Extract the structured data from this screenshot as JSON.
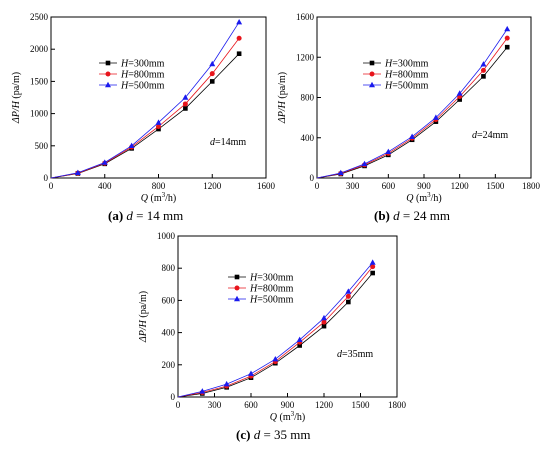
{
  "colors": {
    "H300": "#000000",
    "H800": "#e8141b",
    "H500": "#1a1aee"
  },
  "chart_data": [
    {
      "type": "line",
      "panel": "a",
      "caption": {
        "label": "(a)",
        "var": "d",
        "text": " = 14 mm"
      },
      "annotation": {
        "var": "d",
        "text": "=14mm"
      },
      "xlabel": {
        "var": "Q",
        "text": " (m",
        "sup": "3",
        "tail": "/h)"
      },
      "ylabel": {
        "var": "ΔP/H",
        "text": " (pa/m)"
      },
      "xlim": [
        0,
        1600
      ],
      "ylim": [
        0,
        2500
      ],
      "xticks": [
        0,
        400,
        800,
        1200,
        1600
      ],
      "yticks": [
        0,
        500,
        1000,
        1500,
        2000,
        2500
      ],
      "legend_position": "upper-left",
      "x": [
        0,
        200,
        400,
        600,
        800,
        1000,
        1200,
        1400
      ],
      "series": [
        {
          "name": "H=300mm",
          "var": "H",
          "label": "=300mm",
          "marker": "square",
          "color_key": "H300",
          "values": [
            0,
            70,
            220,
            460,
            760,
            1080,
            1500,
            1930
          ]
        },
        {
          "name": "H=800mm",
          "var": "H",
          "label": "=800mm",
          "marker": "circle",
          "color_key": "H800",
          "values": [
            0,
            75,
            230,
            480,
            800,
            1150,
            1620,
            2170
          ]
        },
        {
          "name": "H=500mm",
          "var": "H",
          "label": "=500mm",
          "marker": "triangle",
          "color_key": "H500",
          "values": [
            0,
            80,
            240,
            500,
            860,
            1250,
            1770,
            2420
          ]
        }
      ]
    },
    {
      "type": "line",
      "panel": "b",
      "caption": {
        "label": "(b)",
        "var": "d",
        "text": " = 24 mm"
      },
      "annotation": {
        "var": "d",
        "text": "=24mm"
      },
      "xlabel": {
        "var": "Q",
        "text": " (m",
        "sup": "3",
        "tail": "/h)"
      },
      "ylabel": {
        "var": "ΔP/H",
        "text": " (pa/m)"
      },
      "xlim": [
        0,
        1800
      ],
      "ylim": [
        0,
        1600
      ],
      "xticks": [
        0,
        300,
        600,
        900,
        1200,
        1500,
        1800
      ],
      "yticks": [
        0,
        400,
        800,
        1200,
        1600
      ],
      "legend_position": "upper-left",
      "x": [
        0,
        200,
        400,
        600,
        800,
        1000,
        1200,
        1400,
        1600
      ],
      "series": [
        {
          "name": "H=300mm",
          "var": "H",
          "label": "=300mm",
          "marker": "square",
          "color_key": "H300",
          "values": [
            0,
            40,
            120,
            230,
            380,
            560,
            780,
            1010,
            1300
          ]
        },
        {
          "name": "H=800mm",
          "var": "H",
          "label": "=800mm",
          "marker": "circle",
          "color_key": "H800",
          "values": [
            0,
            45,
            130,
            245,
            395,
            580,
            810,
            1070,
            1390
          ]
        },
        {
          "name": "H=500mm",
          "var": "H",
          "label": "=500mm",
          "marker": "triangle",
          "color_key": "H500",
          "values": [
            0,
            50,
            140,
            260,
            410,
            600,
            840,
            1130,
            1480
          ]
        }
      ]
    },
    {
      "type": "line",
      "panel": "c",
      "caption": {
        "label": "(c)",
        "var": "d",
        "text": " = 35 mm"
      },
      "annotation": {
        "var": "d",
        "text": "=35mm"
      },
      "xlabel": {
        "var": "Q",
        "text": " (m",
        "sup": "3",
        "tail": "/h)"
      },
      "ylabel": {
        "var": "ΔP/H",
        "text": " (pa/m)"
      },
      "xlim": [
        0,
        1800
      ],
      "ylim": [
        0,
        1000
      ],
      "xticks": [
        0,
        300,
        600,
        900,
        1200,
        1500,
        1800
      ],
      "yticks": [
        0,
        200,
        400,
        600,
        800,
        1000
      ],
      "legend_position": "upper-left",
      "x": [
        0,
        200,
        400,
        600,
        800,
        1000,
        1200,
        1400,
        1600
      ],
      "series": [
        {
          "name": "H=300mm",
          "var": "H",
          "label": "=300mm",
          "marker": "square",
          "color_key": "H300",
          "values": [
            0,
            22,
            60,
            120,
            210,
            320,
            440,
            590,
            770
          ]
        },
        {
          "name": "H=800mm",
          "var": "H",
          "label": "=800mm",
          "marker": "circle",
          "color_key": "H800",
          "values": [
            0,
            28,
            68,
            130,
            220,
            340,
            465,
            625,
            810
          ]
        },
        {
          "name": "H=500mm",
          "var": "H",
          "label": "=500mm",
          "marker": "triangle",
          "color_key": "H500",
          "values": [
            0,
            35,
            80,
            145,
            235,
            355,
            490,
            655,
            835
          ]
        }
      ]
    }
  ]
}
